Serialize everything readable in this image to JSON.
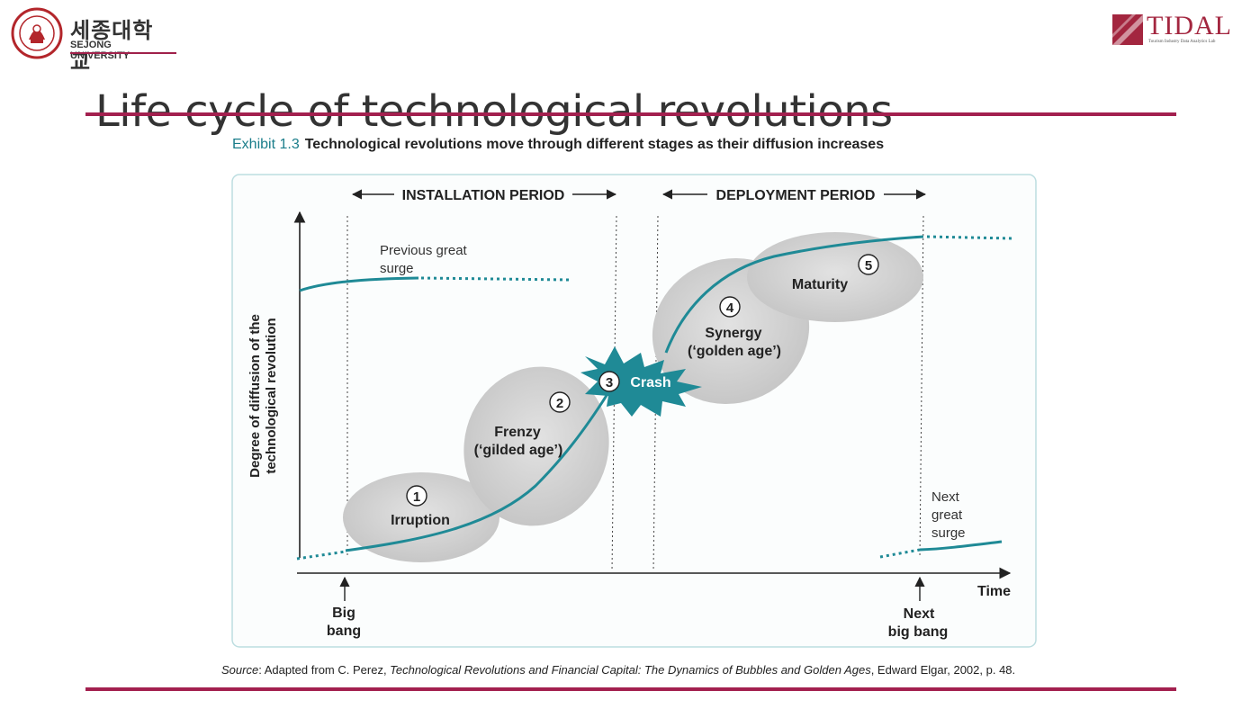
{
  "header": {
    "university_ko": "세종대학교",
    "university_en": "SEJONG UNIVERSITY",
    "lab_name": "TIDAL",
    "lab_subtitle": "Tourism Industry Data Analytics Lab"
  },
  "slide": {
    "title": "Life cycle of technological revolutions"
  },
  "exhibit": {
    "number": "Exhibit 1.3",
    "caption": "Technological revolutions move through different stages as their diffusion increases"
  },
  "diagram": {
    "installation_period": "INSTALLATION PERIOD",
    "deployment_period": "DEPLOYMENT PERIOD",
    "y_axis_line1": "Degree of diffusion of the",
    "y_axis_line2": "technological revolution",
    "x_axis": "Time",
    "prev_surge_line1": "Previous great",
    "prev_surge_line2": "surge",
    "next_surge_line1": "Next",
    "next_surge_line2": "great",
    "next_surge_line3": "surge",
    "big_bang_line1": "Big",
    "big_bang_line2": "bang",
    "next_big_bang_line1": "Next",
    "next_big_bang_line2": "big bang",
    "stages": [
      {
        "num": "1",
        "label1": "Irruption",
        "label2": ""
      },
      {
        "num": "2",
        "label1": "Frenzy",
        "label2": "(‘gilded age’)"
      },
      {
        "num": "3",
        "label1": "Crash",
        "label2": ""
      },
      {
        "num": "4",
        "label1": "Synergy",
        "label2": "(‘golden age’)"
      },
      {
        "num": "5",
        "label1": "Maturity",
        "label2": ""
      }
    ],
    "colors": {
      "curve": "#1f8a96",
      "ellipse": "#cfcfcf",
      "burst": "#1f8a96",
      "accent_rule": "#a3204f"
    }
  },
  "source": {
    "prefix": "Source",
    "text1": ": Adapted from C. Perez, ",
    "book": "Technological Revolutions and Financial Capital: The Dynamics of Bubbles and Golden Ages",
    "text2": ", Edward Elgar, 2002, p. 48."
  }
}
